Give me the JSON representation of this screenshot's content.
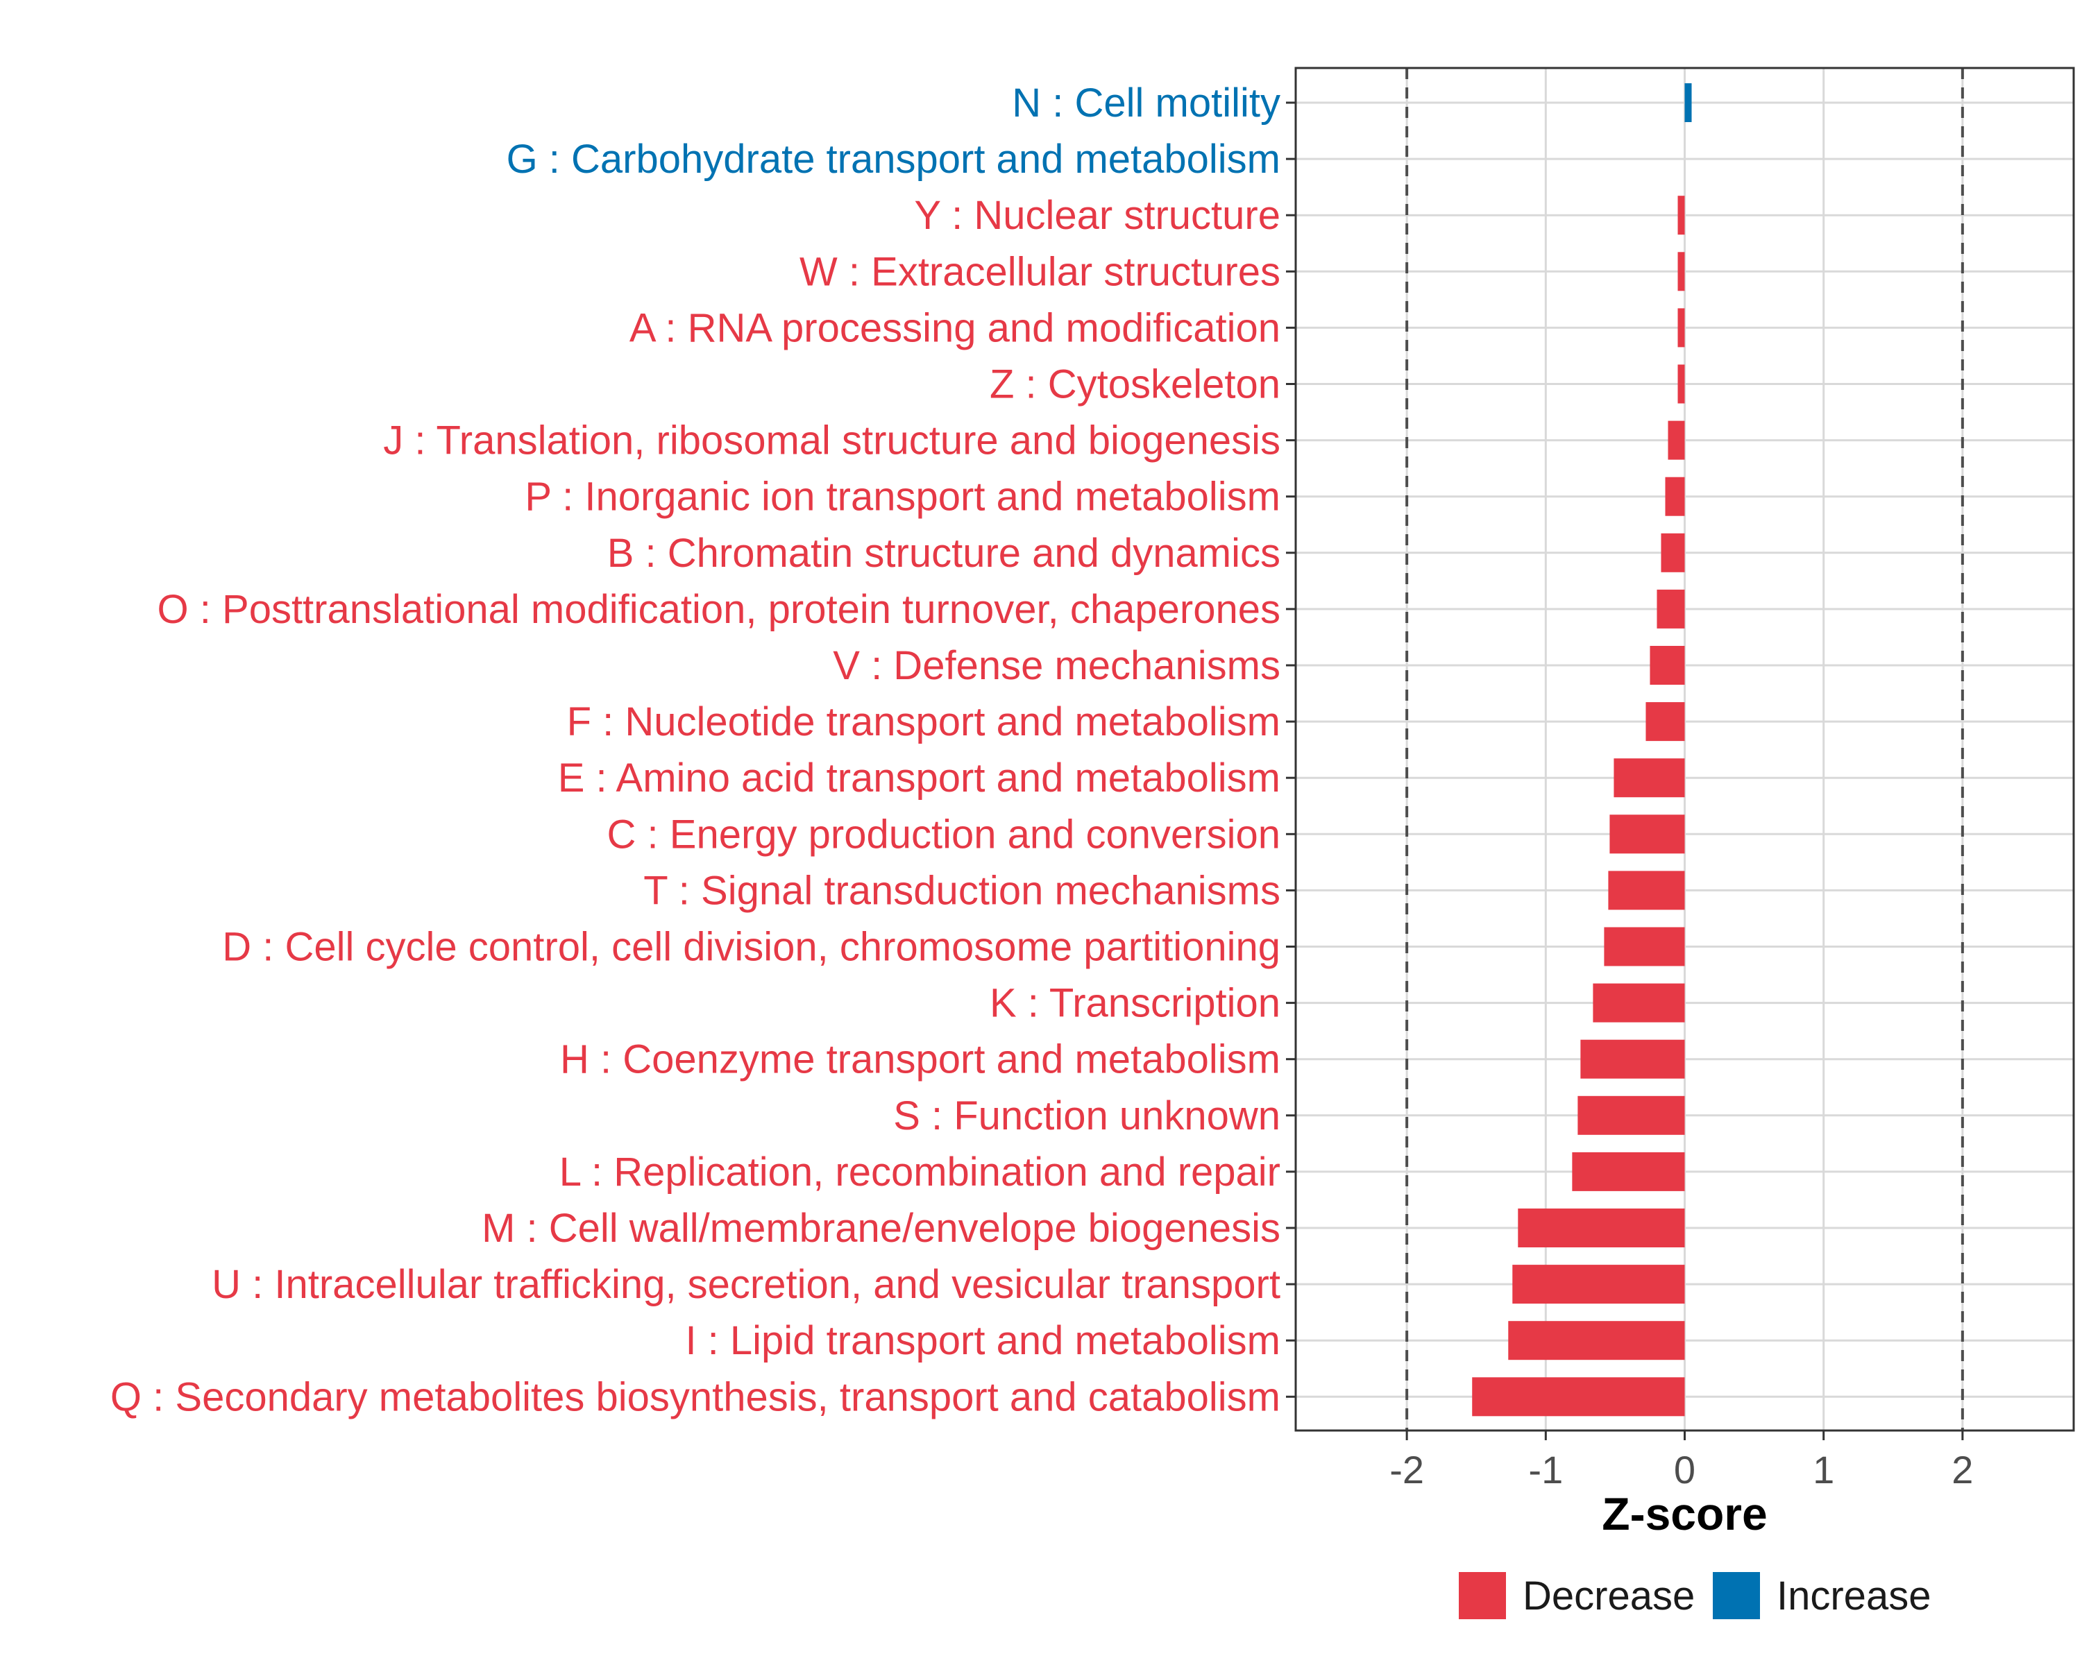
{
  "chart_data": {
    "type": "bar",
    "orientation": "horizontal",
    "xlabel": "Z-score",
    "xlim": [
      -2.8,
      2.8
    ],
    "xticks": [
      -2,
      -1,
      0,
      1,
      2
    ],
    "xtick_labels": [
      "-2",
      "-1",
      "0",
      "1",
      "2"
    ],
    "reference_lines": [
      -2,
      2
    ],
    "grid": true,
    "legend_position": "bottom",
    "legend": [
      {
        "name": "Decrease",
        "color": "#E63946"
      },
      {
        "name": "Increase",
        "color": "#0072B2"
      }
    ],
    "categories": [
      {
        "label": "N : Cell motility",
        "value": 0.04,
        "group": "Increase"
      },
      {
        "label": "G : Carbohydrate transport and metabolism",
        "value": 0.0,
        "group": "Increase"
      },
      {
        "label": "Y : Nuclear structure",
        "value": -0.04,
        "group": "Decrease"
      },
      {
        "label": "W : Extracellular structures",
        "value": -0.04,
        "group": "Decrease"
      },
      {
        "label": "A : RNA processing and modification",
        "value": -0.05,
        "group": "Decrease"
      },
      {
        "label": "Z : Cytoskeleton",
        "value": -0.05,
        "group": "Decrease"
      },
      {
        "label": "J : Translation, ribosomal structure and biogenesis",
        "value": -0.12,
        "group": "Decrease"
      },
      {
        "label": "P : Inorganic ion transport and metabolism",
        "value": -0.14,
        "group": "Decrease"
      },
      {
        "label": "B : Chromatin structure and dynamics",
        "value": -0.17,
        "group": "Decrease"
      },
      {
        "label": "O : Posttranslational modification, protein turnover, chaperones",
        "value": -0.2,
        "group": "Decrease"
      },
      {
        "label": "V : Defense mechanisms",
        "value": -0.25,
        "group": "Decrease"
      },
      {
        "label": "F : Nucleotide transport and metabolism",
        "value": -0.28,
        "group": "Decrease"
      },
      {
        "label": "E : Amino acid transport and metabolism",
        "value": -0.51,
        "group": "Decrease"
      },
      {
        "label": "C : Energy production and conversion",
        "value": -0.54,
        "group": "Decrease"
      },
      {
        "label": "T : Signal transduction mechanisms",
        "value": -0.55,
        "group": "Decrease"
      },
      {
        "label": "D : Cell cycle control, cell division, chromosome partitioning",
        "value": -0.58,
        "group": "Decrease"
      },
      {
        "label": "K : Transcription",
        "value": -0.66,
        "group": "Decrease"
      },
      {
        "label": "H : Coenzyme transport and metabolism",
        "value": -0.75,
        "group": "Decrease"
      },
      {
        "label": "S : Function unknown",
        "value": -0.77,
        "group": "Decrease"
      },
      {
        "label": "L : Replication, recombination and repair",
        "value": -0.81,
        "group": "Decrease"
      },
      {
        "label": "M : Cell wall/membrane/envelope biogenesis",
        "value": -1.2,
        "group": "Decrease"
      },
      {
        "label": "U : Intracellular trafficking, secretion, and vesicular transport",
        "value": -1.24,
        "group": "Decrease"
      },
      {
        "label": "I : Lipid transport and metabolism",
        "value": -1.27,
        "group": "Decrease"
      },
      {
        "label": "Q : Secondary metabolites biosynthesis, transport and catabolism",
        "value": -1.53,
        "group": "Decrease"
      }
    ]
  }
}
